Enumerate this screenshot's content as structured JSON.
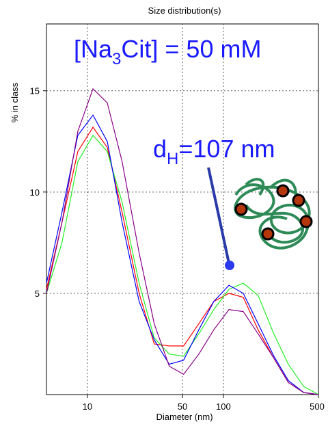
{
  "chart_data": {
    "type": "line",
    "title": "Size distribution(s)",
    "x_label": "Diameter (nm)",
    "y_label": "% in class",
    "x_log": true,
    "grid": true,
    "xlim": [
      5,
      500
    ],
    "ylim": [
      0,
      18.3
    ],
    "xticks": [
      10,
      50,
      100,
      500
    ],
    "yticks": [
      5,
      10,
      15
    ],
    "x": [
      5,
      6.5,
      8.5,
      11,
      14,
      18,
      24,
      31,
      40,
      51,
      66,
      85,
      110,
      140,
      180,
      235,
      300,
      390,
      500
    ],
    "series": [
      {
        "color": "#ff0000",
        "values": [
          5.2,
          8.5,
          12.0,
          13.2,
          12.2,
          9.0,
          5.0,
          2.5,
          2.4,
          2.4,
          3.5,
          4.6,
          5.0,
          4.8,
          3.2,
          1.8,
          0.6,
          0.1,
          0
        ]
      },
      {
        "color": "#22ee22",
        "values": [
          5.0,
          7.5,
          11.5,
          12.8,
          12.0,
          9.5,
          5.5,
          2.8,
          2.0,
          1.9,
          3.0,
          4.2,
          5.2,
          5.5,
          4.9,
          3.0,
          1.5,
          0.4,
          0
        ]
      },
      {
        "color": "#0000ff",
        "values": [
          5.5,
          9.0,
          12.8,
          13.8,
          12.5,
          8.5,
          4.6,
          2.7,
          1.5,
          1.7,
          3.2,
          4.6,
          5.4,
          5.0,
          3.5,
          1.9,
          0.7,
          0.1,
          0
        ]
      },
      {
        "color": "#880088",
        "values": [
          5.0,
          8.5,
          13.0,
          15.1,
          14.4,
          11.5,
          7.0,
          3.5,
          1.4,
          1.0,
          2.0,
          3.2,
          4.2,
          4.1,
          3.0,
          1.8,
          0.6,
          0.1,
          0
        ]
      }
    ],
    "annotations": [
      {
        "parts": [
          "[Na",
          "3",
          "Cit] = 50 mM"
        ]
      },
      {
        "parts": [
          "d",
          "H",
          "=107 nm"
        ]
      }
    ]
  }
}
